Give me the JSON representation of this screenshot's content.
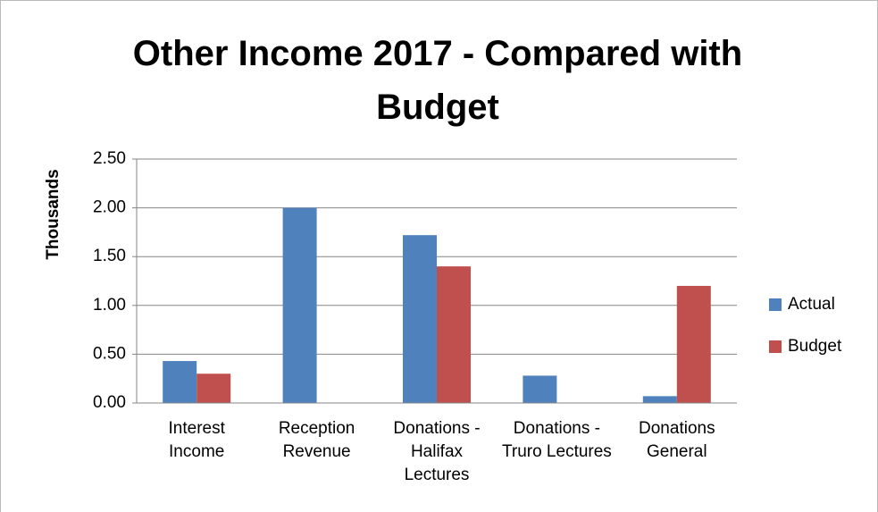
{
  "chart_data": {
    "type": "bar",
    "title": "Other Income 2017 - Compared with Budget",
    "y_label": "Thousands",
    "categories": [
      "Interest Income",
      "Reception Revenue",
      "Donations - Halifax Lectures",
      "Donations - Truro Lectures",
      "Donations General"
    ],
    "series": [
      {
        "name": "Actual",
        "color": "#4f81bd",
        "values": [
          0.43,
          2.0,
          1.72,
          0.28,
          0.07
        ]
      },
      {
        "name": "Budget",
        "color": "#c0504d",
        "values": [
          0.3,
          0,
          1.4,
          0,
          1.2
        ]
      }
    ],
    "ylim": [
      0,
      2.5
    ],
    "yticks": [
      {
        "value": 0,
        "label": "0.00"
      },
      {
        "value": 0.5,
        "label": "0.50"
      },
      {
        "value": 1,
        "label": "1.00"
      },
      {
        "value": 1.5,
        "label": "1.50"
      },
      {
        "value": 2,
        "label": "2.00"
      },
      {
        "value": 2.5,
        "label": "2.50"
      }
    ],
    "grid": true,
    "legend": "right"
  }
}
